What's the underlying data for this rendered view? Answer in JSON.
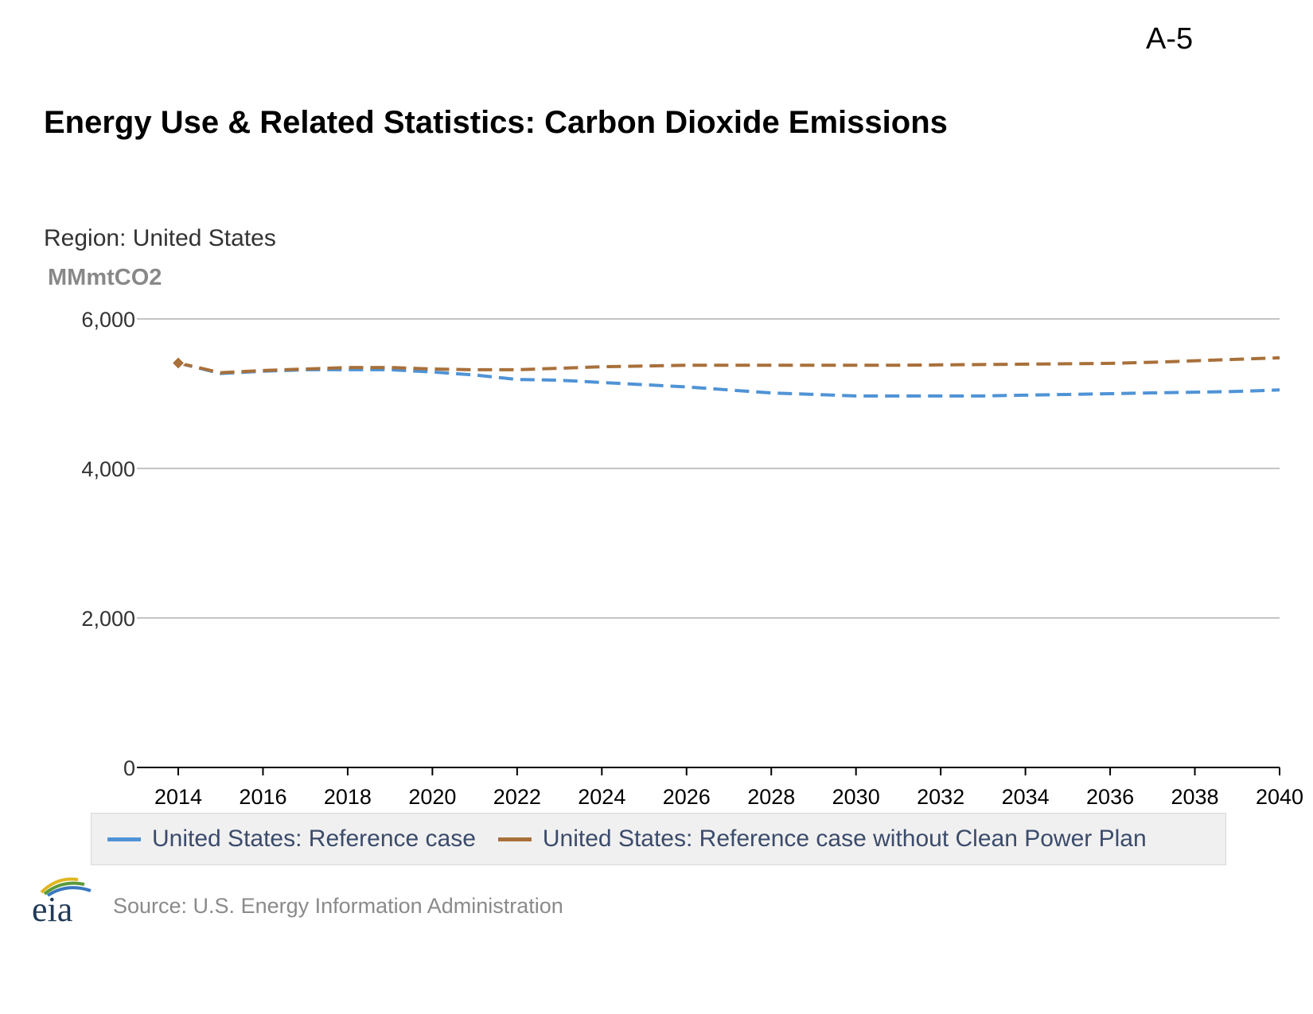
{
  "page_label": "A-5",
  "source": "Source: U.S. Energy Information Administration",
  "logo_text": "eia",
  "chart_data": {
    "type": "line",
    "title": "Energy Use & Related Statistics: Carbon Dioxide Emissions",
    "subtitle": "Region: United States",
    "ylabel": "MMmtCO2",
    "xlabel": "",
    "xlim": [
      2014,
      2040
    ],
    "ylim": [
      0,
      6000
    ],
    "x_ticks": [
      2014,
      2016,
      2018,
      2020,
      2022,
      2024,
      2026,
      2028,
      2030,
      2032,
      2034,
      2036,
      2038,
      2040
    ],
    "y_ticks": [
      0,
      2000,
      4000,
      6000
    ],
    "y_tick_labels": [
      "0",
      "2,000",
      "4,000",
      "6,000"
    ],
    "grid": true,
    "legend_position": "bottom",
    "x": [
      2014,
      2015,
      2016,
      2017,
      2018,
      2019,
      2020,
      2021,
      2022,
      2023,
      2024,
      2025,
      2026,
      2027,
      2028,
      2029,
      2030,
      2031,
      2032,
      2033,
      2034,
      2035,
      2036,
      2037,
      2038,
      2039,
      2040
    ],
    "series": [
      {
        "name": "United States: Reference case",
        "color": "#4f93d6",
        "values": [
          5410,
          5270,
          5300,
          5320,
          5320,
          5320,
          5290,
          5250,
          5190,
          5180,
          5150,
          5120,
          5090,
          5050,
          5010,
          4990,
          4970,
          4970,
          4970,
          4970,
          4980,
          4990,
          5000,
          5010,
          5020,
          5030,
          5050
        ]
      },
      {
        "name": "United States: Reference case without Clean Power Plan",
        "color": "#a8703a",
        "values": [
          5410,
          5280,
          5310,
          5330,
          5350,
          5350,
          5330,
          5320,
          5320,
          5340,
          5360,
          5370,
          5380,
          5380,
          5380,
          5380,
          5380,
          5380,
          5385,
          5390,
          5395,
          5400,
          5405,
          5420,
          5440,
          5460,
          5480
        ]
      }
    ]
  }
}
